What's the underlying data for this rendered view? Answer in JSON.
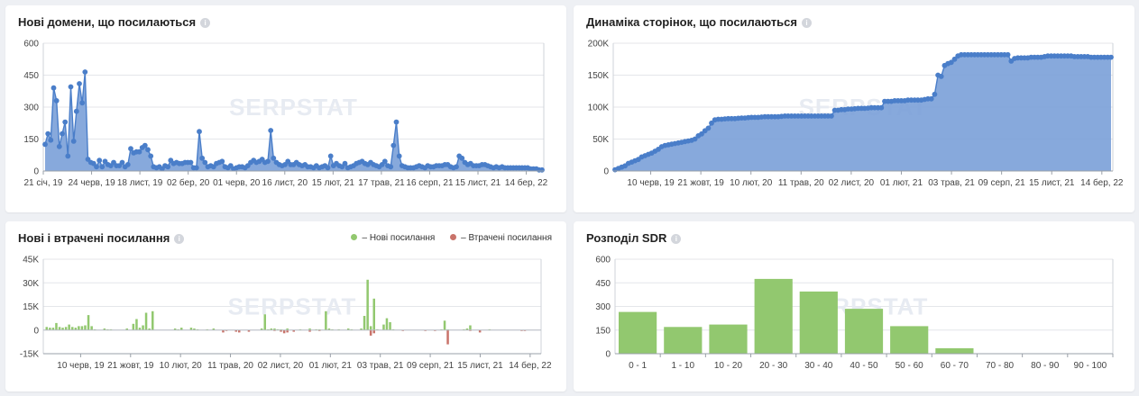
{
  "watermark": "SERPSTAT",
  "colors": {
    "blue": "#4a7ec9",
    "blue_fill": "#7aa0d8",
    "green": "#92c86f",
    "red": "#c9736a",
    "grid": "#e4e6ea"
  },
  "chart_data": [
    {
      "id": "new_domains",
      "type": "area",
      "title": "Нові домени, що посилаються",
      "info_icon": "info-icon",
      "ylim": [
        0,
        600
      ],
      "yticks": [
        "0",
        "150",
        "300",
        "450",
        "600"
      ],
      "xticks": [
        "21 січ, 19",
        "24 черв, 19",
        "18 лист, 19",
        "02 бер, 20",
        "01 черв, 20",
        "16 лист, 20",
        "15 лют, 21",
        "17 трав, 21",
        "16 серп, 21",
        "15 лист, 21",
        "14 бер, 22"
      ],
      "values": [
        125,
        175,
        145,
        390,
        330,
        115,
        175,
        230,
        70,
        395,
        140,
        280,
        410,
        320,
        465,
        55,
        40,
        35,
        20,
        50,
        20,
        45,
        30,
        25,
        40,
        25,
        25,
        40,
        20,
        30,
        105,
        85,
        90,
        90,
        110,
        120,
        100,
        70,
        20,
        15,
        20,
        10,
        25,
        20,
        50,
        35,
        40,
        35,
        35,
        40,
        40,
        40,
        15,
        15,
        185,
        60,
        40,
        20,
        25,
        20,
        35,
        40,
        45,
        20,
        15,
        25,
        10,
        15,
        20,
        20,
        15,
        25,
        40,
        50,
        40,
        45,
        55,
        40,
        45,
        190,
        60,
        40,
        30,
        25,
        30,
        45,
        30,
        30,
        40,
        30,
        25,
        30,
        20,
        20,
        15,
        25,
        15,
        20,
        25,
        15,
        70,
        25,
        35,
        25,
        20,
        35,
        15,
        20,
        25,
        35,
        40,
        45,
        35,
        30,
        40,
        30,
        25,
        20,
        30,
        45,
        25,
        20,
        120,
        230,
        70,
        25,
        20,
        15,
        15,
        15,
        20,
        25,
        20,
        15,
        25,
        20,
        20,
        25,
        25,
        25,
        30,
        30,
        20,
        15,
        20,
        70,
        60,
        40,
        30,
        35,
        25,
        25,
        25,
        30,
        30,
        25,
        20,
        15,
        20,
        15,
        20,
        15,
        15,
        15,
        15,
        15,
        15,
        15,
        15,
        15,
        10,
        10,
        10,
        5,
        5
      ]
    },
    {
      "id": "pages_dynamics",
      "type": "area",
      "title": "Динаміка сторінок, що посилаються",
      "info_icon": "info-icon",
      "ylim": [
        0,
        200000
      ],
      "yticks": [
        "0",
        "50K",
        "100K",
        "150K",
        "200K"
      ],
      "xticks": [
        "10 черв, 19",
        "21 жовт, 19",
        "10 лют, 20",
        "11 трав, 20",
        "02 лист, 20",
        "01 лют, 21",
        "03 трав, 21",
        "09 серп, 21",
        "15 лист, 21",
        "14 бер, 22"
      ],
      "values": [
        2000,
        4000,
        6000,
        8000,
        12000,
        14000,
        16000,
        18000,
        22000,
        24000,
        26000,
        28000,
        31000,
        34000,
        38000,
        40000,
        41000,
        42000,
        43000,
        44000,
        45000,
        46000,
        47000,
        48000,
        50000,
        55000,
        58000,
        63000,
        67000,
        75000,
        80000,
        81000,
        81000,
        81500,
        82000,
        82000,
        82000,
        82500,
        83000,
        83000,
        83500,
        84000,
        84000,
        84000,
        84500,
        85000,
        85000,
        85000,
        85000,
        85000,
        85500,
        86000,
        86000,
        86000,
        86000,
        86000,
        86000,
        86000,
        86000,
        86000,
        86000,
        86000,
        86000,
        86000,
        86000,
        86000,
        95000,
        95000,
        96000,
        96000,
        97000,
        97000,
        97500,
        98000,
        98000,
        98000,
        98500,
        99000,
        99000,
        99000,
        99000,
        109000,
        109000,
        109000,
        110000,
        110000,
        110000,
        110000,
        111000,
        111000,
        111000,
        111000,
        111000,
        112000,
        113000,
        113000,
        120000,
        150000,
        148000,
        165000,
        168000,
        170000,
        175000,
        180000,
        182000,
        182000,
        182000,
        182000,
        182000,
        182000,
        182000,
        182000,
        182000,
        182000,
        182000,
        182000,
        182000,
        182000,
        182000,
        172000,
        176000,
        177000,
        177000,
        177000,
        177000,
        178000,
        178000,
        178000,
        178000,
        179000,
        180000,
        180000,
        180000,
        180000,
        180000,
        180000,
        180000,
        180000,
        179000,
        179000,
        179000,
        179000,
        179000,
        178000,
        178000,
        178000,
        178000,
        178000,
        178000,
        178000
      ]
    },
    {
      "id": "new_lost_links",
      "type": "bar",
      "title": "Нові і втрачені посилання",
      "info_icon": "info-icon",
      "ylim": [
        -15000,
        45000
      ],
      "yticks": [
        "-15K",
        "0",
        "15K",
        "30K",
        "45K"
      ],
      "xticks": [
        "10 черв, 19",
        "21 жовт, 19",
        "10 лют, 20",
        "11 трав, 20",
        "02 лист, 20",
        "01 лют, 21",
        "03 трав, 21",
        "09 серп, 21",
        "15 лист, 21",
        "14 бер, 22"
      ],
      "legend": [
        {
          "label": "– Нові посилання",
          "color": "#92c86f"
        },
        {
          "label": "– Втрачені посилання",
          "color": "#c9736a"
        }
      ],
      "series": [
        {
          "name": "Нові посилання",
          "values": [
            2000,
            1500,
            1500,
            4500,
            2000,
            1500,
            2000,
            3500,
            2000,
            1500,
            2500,
            2500,
            3000,
            9500,
            2500,
            500,
            0,
            0,
            1000,
            500,
            500,
            0,
            0,
            0,
            0,
            1000,
            0,
            4000,
            7000,
            1500,
            3000,
            11000,
            1000,
            12000,
            0,
            0,
            0,
            0,
            0,
            0,
            1000,
            500,
            1500,
            0,
            0,
            1500,
            1000,
            500,
            0,
            0,
            500,
            0,
            1000,
            0,
            0,
            0,
            0,
            0,
            0,
            0,
            0,
            0,
            0,
            0,
            0,
            0,
            0,
            1000,
            10000,
            500,
            1000,
            1000,
            500,
            500,
            0,
            1000,
            0,
            0,
            0,
            500,
            0,
            0,
            1000,
            0,
            500,
            500,
            0,
            12000,
            1000,
            500,
            0,
            500,
            0,
            0,
            1000,
            500,
            0,
            0,
            1000,
            9000,
            32000,
            2500,
            20000,
            500,
            0,
            3500,
            7500,
            5000,
            500,
            0,
            0,
            0,
            0,
            0,
            0,
            0,
            0,
            0,
            0,
            0,
            0,
            0,
            0,
            500,
            6000,
            500,
            0,
            0,
            0,
            0,
            500,
            1000,
            3000,
            0,
            0,
            0,
            0,
            0,
            500,
            0,
            0,
            0,
            0,
            0,
            0,
            0,
            0,
            0,
            0,
            0,
            0,
            0,
            0,
            0
          ]
        },
        {
          "name": "Втрачені посилання",
          "values": [
            0,
            0,
            0,
            0,
            0,
            0,
            0,
            0,
            0,
            0,
            0,
            0,
            0,
            0,
            0,
            0,
            0,
            0,
            0,
            0,
            0,
            0,
            0,
            0,
            0,
            0,
            0,
            0,
            0,
            0,
            0,
            0,
            0,
            0,
            0,
            0,
            0,
            0,
            0,
            0,
            0,
            0,
            0,
            0,
            0,
            0,
            0,
            0,
            0,
            0,
            0,
            0,
            0,
            0,
            0,
            -1500,
            -500,
            0,
            0,
            -1000,
            -1500,
            0,
            0,
            -1000,
            0,
            0,
            0,
            0,
            0,
            0,
            0,
            -500,
            0,
            -1000,
            -2000,
            -1500,
            0,
            -1000,
            0,
            0,
            0,
            0,
            -1000,
            0,
            0,
            -500,
            0,
            0,
            0,
            0,
            0,
            0,
            0,
            0,
            0,
            0,
            0,
            0,
            0,
            0,
            0,
            -3500,
            -2000,
            0,
            0,
            0,
            0,
            0,
            0,
            0,
            0,
            -500,
            0,
            0,
            0,
            0,
            0,
            0,
            -500,
            0,
            0,
            -500,
            0,
            0,
            0,
            -9000,
            0,
            0,
            0,
            0,
            0,
            0,
            -500,
            0,
            0,
            -1500,
            0,
            0,
            0,
            0,
            0,
            0,
            0,
            0,
            0,
            0,
            0,
            0,
            -500,
            -500,
            0,
            0,
            0,
            0
          ]
        }
      ]
    },
    {
      "id": "sdr_distribution",
      "type": "bar",
      "title": "Розподіл SDR",
      "info_icon": "info-icon",
      "ylim": [
        0,
        600
      ],
      "yticks": [
        "0",
        "150",
        "300",
        "450",
        "600"
      ],
      "categories": [
        "0 - 1",
        "1 - 10",
        "10 - 20",
        "20 - 30",
        "30 - 40",
        "40 - 50",
        "50 - 60",
        "60 - 70",
        "70 - 80",
        "80 - 90",
        "90 - 100"
      ],
      "values": [
        265,
        170,
        185,
        475,
        395,
        285,
        175,
        35,
        0,
        0,
        0
      ]
    }
  ]
}
